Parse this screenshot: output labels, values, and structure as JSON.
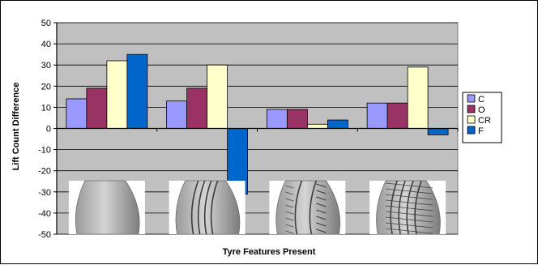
{
  "chart_data": {
    "type": "bar",
    "title": "",
    "xlabel": "Tyre Features Present",
    "ylabel": "Lift Count Difference",
    "ylim": [
      -50,
      50
    ],
    "ytick_step": 10,
    "grid": true,
    "legend_position": "right",
    "plot_background": "#c0c0c0",
    "categories": [
      "",
      "",
      "",
      ""
    ],
    "series": [
      {
        "name": "C",
        "color": "#9999ff",
        "values": [
          14,
          13,
          9,
          12
        ]
      },
      {
        "name": "O",
        "color": "#993366",
        "values": [
          19,
          19,
          9,
          12
        ]
      },
      {
        "name": "CR",
        "color": "#ffffcc",
        "values": [
          32,
          30,
          2,
          29
        ]
      },
      {
        "name": "F",
        "color": "#0066cc",
        "values": [
          35,
          -31,
          4,
          -3
        ]
      }
    ],
    "tyre_images": [
      "smooth-tyre-tread",
      "grooved-tyre-tread",
      "siped-tyre-tread",
      "full-pattern-tyre-tread"
    ]
  }
}
